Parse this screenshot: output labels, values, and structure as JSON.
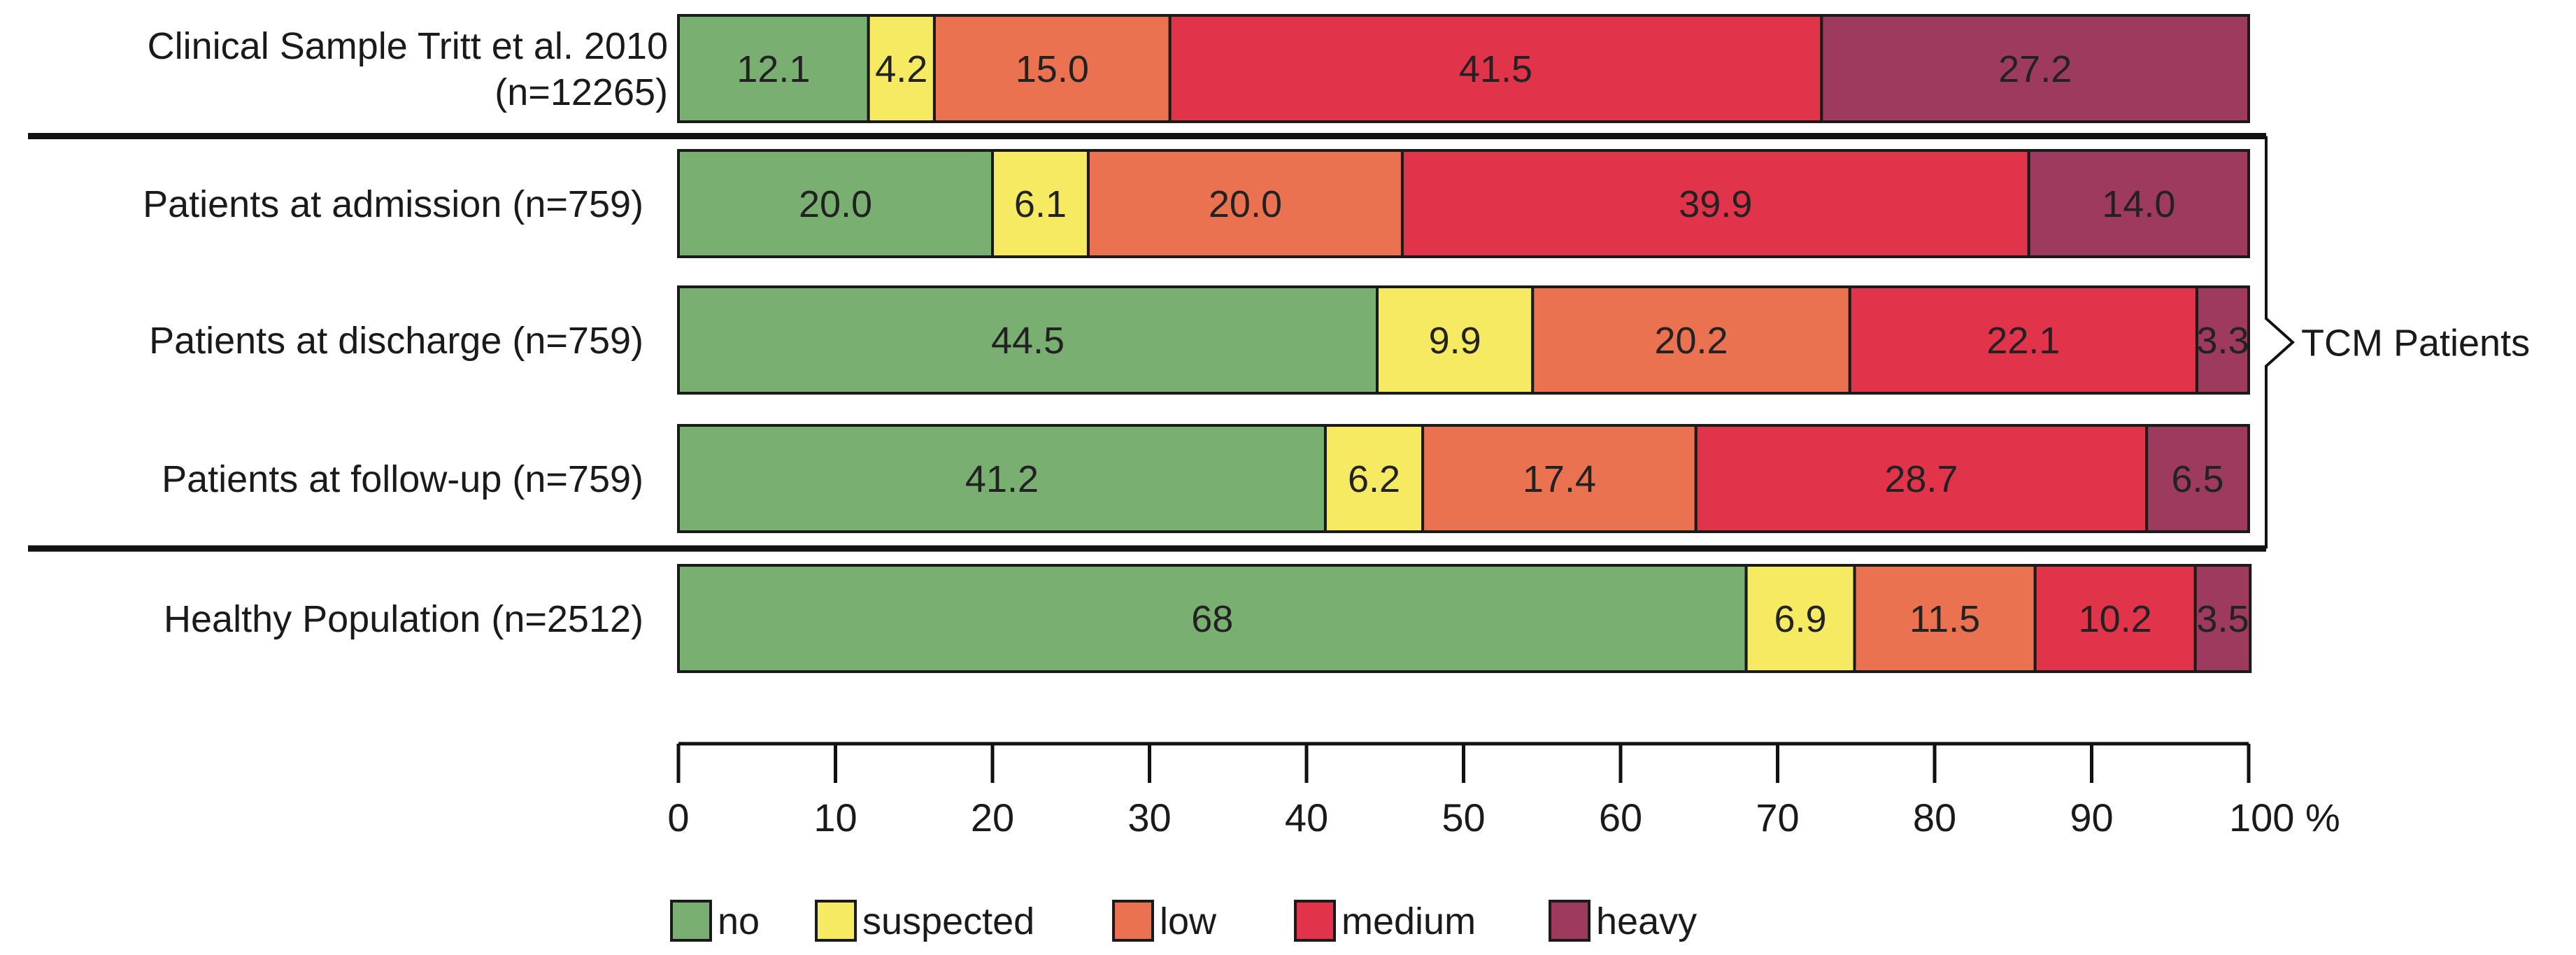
{
  "chart_data": {
    "type": "bar",
    "orientation": "horizontal",
    "stacked": true,
    "categories": [
      [
        "Clinical Sample Tritt et al. 2010",
        "(n=12265)"
      ],
      [
        "Patients at admission (n=759)"
      ],
      [
        "Patients at discharge (n=759)"
      ],
      [
        "Patients at follow-up (n=759)"
      ],
      [
        "Healthy Population (n=2512)"
      ]
    ],
    "series": [
      {
        "name": "no",
        "color": "#7aaf72",
        "values": [
          12.1,
          20.0,
          44.5,
          41.2,
          68
        ],
        "labels": [
          "12.1",
          "20.0",
          "44.5",
          "41.2",
          "68"
        ]
      },
      {
        "name": "suspected",
        "color": "#f6ea63",
        "values": [
          4.2,
          6.1,
          9.9,
          6.2,
          6.9
        ],
        "labels": [
          "4.2",
          "6.1",
          "9.9",
          "6.2",
          "6.9"
        ]
      },
      {
        "name": "low",
        "color": "#ea7250",
        "values": [
          15.0,
          20.0,
          20.2,
          17.4,
          11.5
        ],
        "labels": [
          "15.0",
          "20.0",
          "20.2",
          "17.4",
          "11.5"
        ]
      },
      {
        "name": "medium",
        "color": "#e1334a",
        "values": [
          41.5,
          39.9,
          22.1,
          28.7,
          10.2
        ],
        "labels": [
          "41.5",
          "39.9",
          "22.1",
          "28.7",
          "10.2"
        ]
      },
      {
        "name": "heavy",
        "color": "#9e3a5d",
        "values": [
          27.2,
          14.0,
          3.3,
          6.5,
          3.5
        ],
        "labels": [
          "27.2",
          "14.0",
          "3.3",
          "6.5",
          "3.5"
        ]
      }
    ],
    "xlim": [
      0,
      100
    ],
    "xticks": [
      "0",
      "10",
      "20",
      "30",
      "40",
      "50",
      "60",
      "70",
      "80",
      "90",
      "100 %"
    ],
    "group_annotation": {
      "label": "TCM Patients",
      "categories": [
        1,
        2,
        3
      ]
    },
    "legend": {
      "position": "bottom-left"
    },
    "grid": false
  }
}
